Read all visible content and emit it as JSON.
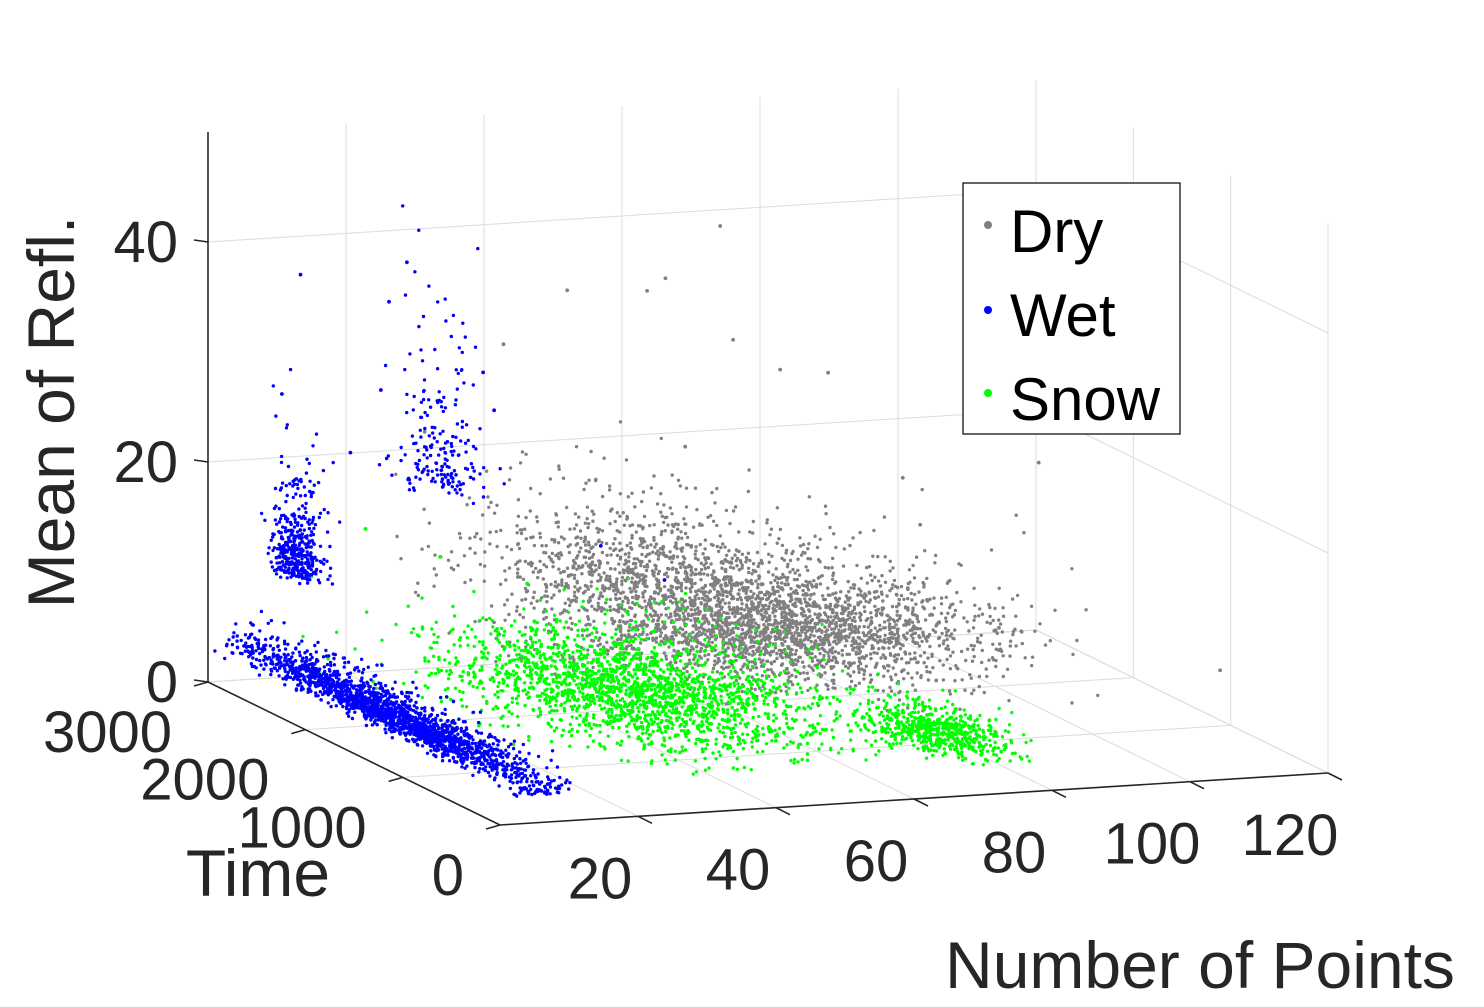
{
  "chart_data": {
    "type": "scatter",
    "projection": "3d",
    "xlabel": "Number of Points",
    "ylabel": "Time",
    "zlabel": "Mean of Refl.",
    "xlim": [
      0,
      120
    ],
    "ylim": [
      0,
      3000
    ],
    "zlim": [
      0,
      50
    ],
    "x_ticks": [
      20,
      40,
      60,
      80,
      100,
      120
    ],
    "y_ticks": [
      0,
      1000,
      2000,
      3000
    ],
    "z_ticks": [
      0,
      20,
      40
    ],
    "grid": true,
    "legend_position": "top-right",
    "series": [
      {
        "name": "Dry",
        "color": "#808080",
        "clusters": [
          {
            "x_center": 65,
            "x_spread": 28,
            "y_center": 1800,
            "y_spread": 1000,
            "z_center": 6,
            "z_spread": 3.5,
            "count": 2600
          },
          {
            "x_center": 50,
            "x_spread": 22,
            "y_center": 2200,
            "y_spread": 800,
            "z_center": 10,
            "z_spread": 5,
            "count": 700
          }
        ],
        "outliers": [
          [
            40,
            2800,
            30
          ],
          [
            45,
            2500,
            36
          ],
          [
            55,
            2200,
            38
          ],
          [
            62,
            2000,
            33
          ],
          [
            70,
            2700,
            40
          ],
          [
            48,
            1500,
            26
          ],
          [
            80,
            2300,
            28
          ],
          [
            95,
            1200,
            24
          ],
          [
            30,
            2900,
            22
          ],
          [
            75,
            1000,
            20
          ],
          [
            58,
            2600,
            35
          ],
          [
            66,
            1800,
            31
          ],
          [
            88,
            2100,
            19
          ],
          [
            42,
            1300,
            18
          ],
          [
            110,
            400,
            8
          ]
        ]
      },
      {
        "name": "Wet",
        "color": "#0000ff",
        "clusters": [
          {
            "x_center": 6,
            "x_spread": 4,
            "y_center": 1500,
            "y_spread": 1500,
            "z_center": 2.5,
            "z_spread": 1.5,
            "count": 1900
          },
          {
            "x_center": 10,
            "x_spread": 2,
            "y_center": 2800,
            "y_spread": 250,
            "z_center": 10,
            "z_spread": 6,
            "count": 400
          },
          {
            "x_center": 28,
            "x_spread": 4,
            "y_center": 2600,
            "y_spread": 350,
            "z_center": 18,
            "z_spread": 10,
            "count": 200
          }
        ],
        "outliers": [
          [
            12,
            2900,
            37
          ],
          [
            22,
            2700,
            35
          ],
          [
            26,
            2800,
            38
          ],
          [
            18,
            2500,
            28
          ],
          [
            33,
            2400,
            26
          ],
          [
            40,
            1800,
            16
          ],
          [
            45,
            1500,
            14
          ],
          [
            10,
            2950,
            26
          ],
          [
            15,
            2600,
            22
          ],
          [
            30,
            2300,
            30
          ]
        ]
      },
      {
        "name": "Snow",
        "color": "#00ff00",
        "clusters": [
          {
            "x_center": 40,
            "x_spread": 22,
            "y_center": 1400,
            "y_spread": 1200,
            "z_center": 3.5,
            "z_spread": 2.2,
            "count": 2100
          },
          {
            "x_center": 72,
            "x_spread": 8,
            "y_center": 600,
            "y_spread": 500,
            "z_center": 2.5,
            "z_spread": 1.2,
            "count": 600
          }
        ],
        "outliers": [
          [
            20,
            2800,
            14
          ],
          [
            28,
            2600,
            12
          ],
          [
            35,
            2200,
            11
          ],
          [
            15,
            3000,
            9
          ],
          [
            50,
            1500,
            10
          ]
        ]
      }
    ]
  },
  "legend": {
    "items": [
      {
        "label": "Dry",
        "color": "#808080"
      },
      {
        "label": "Wet",
        "color": "#0000ff"
      },
      {
        "label": "Snow",
        "color": "#00ff00"
      }
    ]
  }
}
